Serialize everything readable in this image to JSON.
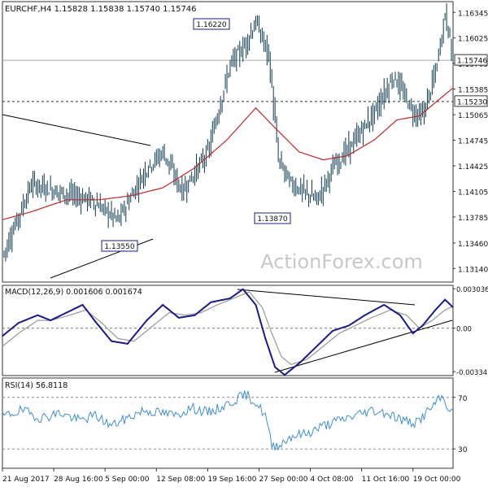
{
  "chart_data": [
    {
      "type": "ohlc",
      "panel": "price",
      "title": "EURCHF,H4  1.15828 1.15838 1.15740 1.15746",
      "y_ticks": [
        "1.16345",
        "1.16025",
        "1.15705",
        "1.15385",
        "1.15065",
        "1.14745",
        "1.14425",
        "1.14105",
        "1.13785",
        "1.13460",
        "1.13140"
      ],
      "ylim": [
        1.1297,
        1.1648
      ],
      "x_ticks": [
        "21 Aug 2017",
        "28 Aug 16:00",
        "5 Sep 00:00",
        "12 Sep 08:00",
        "19 Sep 16:00",
        "27 Sep 00:00",
        "4 Oct 08:00",
        "11 Oct 16:00",
        "19 Oct 00:00"
      ],
      "current_price": "1.15746",
      "level_line": "1.15230",
      "annotations": [
        {
          "text": "1.16220",
          "value": 1.1622
        },
        {
          "text": "1.13870",
          "value": 1.1387
        },
        {
          "text": "1.13550",
          "value": 1.1355
        }
      ],
      "series": [
        {
          "name": "close",
          "color": "#0d3b4f",
          "key_points": [
            [
              0,
              1.133
            ],
            [
              8,
              1.137
            ],
            [
              18,
              1.142
            ],
            [
              35,
              1.141
            ],
            [
              55,
              1.14
            ],
            [
              72,
              1.1375
            ],
            [
              90,
              1.144
            ],
            [
              100,
              1.146
            ],
            [
              112,
              1.141
            ],
            [
              128,
              1.146
            ],
            [
              142,
              1.157
            ],
            [
              150,
              1.159
            ],
            [
              158,
              1.1622
            ],
            [
              166,
              1.158
            ],
            [
              172,
              1.145
            ],
            [
              180,
              1.142
            ],
            [
              188,
              1.141
            ],
            [
              196,
              1.14
            ],
            [
              206,
              1.144
            ],
            [
              218,
              1.147
            ],
            [
              232,
              1.151
            ],
            [
              244,
              1.1555
            ],
            [
              256,
              1.151
            ],
            [
              262,
              1.1505
            ],
            [
              270,
              1.156
            ],
            [
              276,
              1.1634
            ],
            [
              281,
              1.1575
            ]
          ]
        },
        {
          "name": "moving-average",
          "color": "#c0282b",
          "key_points": [
            [
              0,
              1.1375
            ],
            [
              18,
              1.1385
            ],
            [
              40,
              1.14
            ],
            [
              60,
              1.14
            ],
            [
              80,
              1.1405
            ],
            [
              100,
              1.1415
            ],
            [
              120,
              1.144
            ],
            [
              140,
              1.1475
            ],
            [
              158,
              1.1515
            ],
            [
              170,
              1.149
            ],
            [
              185,
              1.146
            ],
            [
              200,
              1.145
            ],
            [
              215,
              1.1455
            ],
            [
              232,
              1.1475
            ],
            [
              246,
              1.15
            ],
            [
              260,
              1.1505
            ],
            [
              272,
              1.1525
            ],
            [
              281,
              1.154
            ]
          ]
        }
      ]
    },
    {
      "type": "line",
      "panel": "macd",
      "title": "MACD(12,26,9) 0.001606 0.001674",
      "y_ticks": [
        "0.003036",
        "0.00",
        "-0.003347"
      ],
      "ylim": [
        -0.00365,
        0.0033
      ],
      "series": [
        {
          "name": "macd",
          "color": "#1a1a8c",
          "key_points": [
            [
              0,
              -0.0006
            ],
            [
              10,
              0.0004
            ],
            [
              22,
              0.001
            ],
            [
              30,
              0.0006
            ],
            [
              40,
              0.0012
            ],
            [
              50,
              0.0018
            ],
            [
              58,
              0.0005
            ],
            [
              68,
              -0.001
            ],
            [
              78,
              -0.0012
            ],
            [
              90,
              0.0006
            ],
            [
              100,
              0.0018
            ],
            [
              110,
              0.0008
            ],
            [
              120,
              0.001
            ],
            [
              130,
              0.002
            ],
            [
              142,
              0.0023
            ],
            [
              150,
              0.003
            ],
            [
              158,
              0.0018
            ],
            [
              164,
              -0.0008
            ],
            [
              170,
              -0.003
            ],
            [
              176,
              -0.0036
            ],
            [
              186,
              -0.0026
            ],
            [
              196,
              -0.0014
            ],
            [
              206,
              -0.0002
            ],
            [
              216,
              0.0002
            ],
            [
              226,
              0.001
            ],
            [
              238,
              0.0018
            ],
            [
              248,
              0.001
            ],
            [
              256,
              -0.0004
            ],
            [
              262,
              0.0002
            ],
            [
              270,
              0.0014
            ],
            [
              276,
              0.0022
            ],
            [
              281,
              0.0016
            ]
          ]
        },
        {
          "name": "signal",
          "color": "#999999",
          "key_points": [
            [
              0,
              -0.0014
            ],
            [
              10,
              -0.0004
            ],
            [
              22,
              0.0006
            ],
            [
              30,
              0.0006
            ],
            [
              42,
              0.001
            ],
            [
              52,
              0.0014
            ],
            [
              62,
              0.0004
            ],
            [
              72,
              -0.0008
            ],
            [
              82,
              -0.001
            ],
            [
              94,
              0.0002
            ],
            [
              104,
              0.0012
            ],
            [
              114,
              0.001
            ],
            [
              124,
              0.0012
            ],
            [
              134,
              0.0018
            ],
            [
              146,
              0.0024
            ],
            [
              154,
              0.0028
            ],
            [
              162,
              0.0016
            ],
            [
              168,
              -0.0004
            ],
            [
              174,
              -0.0022
            ],
            [
              180,
              -0.0028
            ],
            [
              190,
              -0.0024
            ],
            [
              200,
              -0.0014
            ],
            [
              210,
              -0.0004
            ],
            [
              220,
              0.0002
            ],
            [
              230,
              0.0008
            ],
            [
              242,
              0.0014
            ],
            [
              252,
              0.001
            ],
            [
              260,
              0.0
            ],
            [
              268,
              0.0006
            ],
            [
              276,
              0.0014
            ],
            [
              281,
              0.0017
            ]
          ]
        }
      ]
    },
    {
      "type": "line",
      "panel": "rsi",
      "title": "RSI(14) 56.8118",
      "y_ticks": [
        "70",
        "30"
      ],
      "ylim": [
        15,
        85
      ],
      "series": [
        {
          "name": "rsi",
          "color": "#3d8fd4",
          "key_points": [
            [
              0,
              55
            ],
            [
              12,
              60
            ],
            [
              24,
              54
            ],
            [
              36,
              58
            ],
            [
              48,
              52
            ],
            [
              58,
              56
            ],
            [
              68,
              48
            ],
            [
              78,
              54
            ],
            [
              88,
              60
            ],
            [
              98,
              58
            ],
            [
              108,
              56
            ],
            [
              118,
              62
            ],
            [
              128,
              58
            ],
            [
              138,
              63
            ],
            [
              148,
              70
            ],
            [
              152,
              72
            ],
            [
              158,
              66
            ],
            [
              164,
              56
            ],
            [
              168,
              32
            ],
            [
              174,
              34
            ],
            [
              180,
              40
            ],
            [
              190,
              42
            ],
            [
              200,
              48
            ],
            [
              210,
              52
            ],
            [
              220,
              56
            ],
            [
              230,
              60
            ],
            [
              240,
              58
            ],
            [
              250,
              52
            ],
            [
              258,
              50
            ],
            [
              266,
              60
            ],
            [
              274,
              70
            ],
            [
              281,
              57
            ]
          ]
        }
      ]
    }
  ],
  "watermark": "ActionForex.com"
}
